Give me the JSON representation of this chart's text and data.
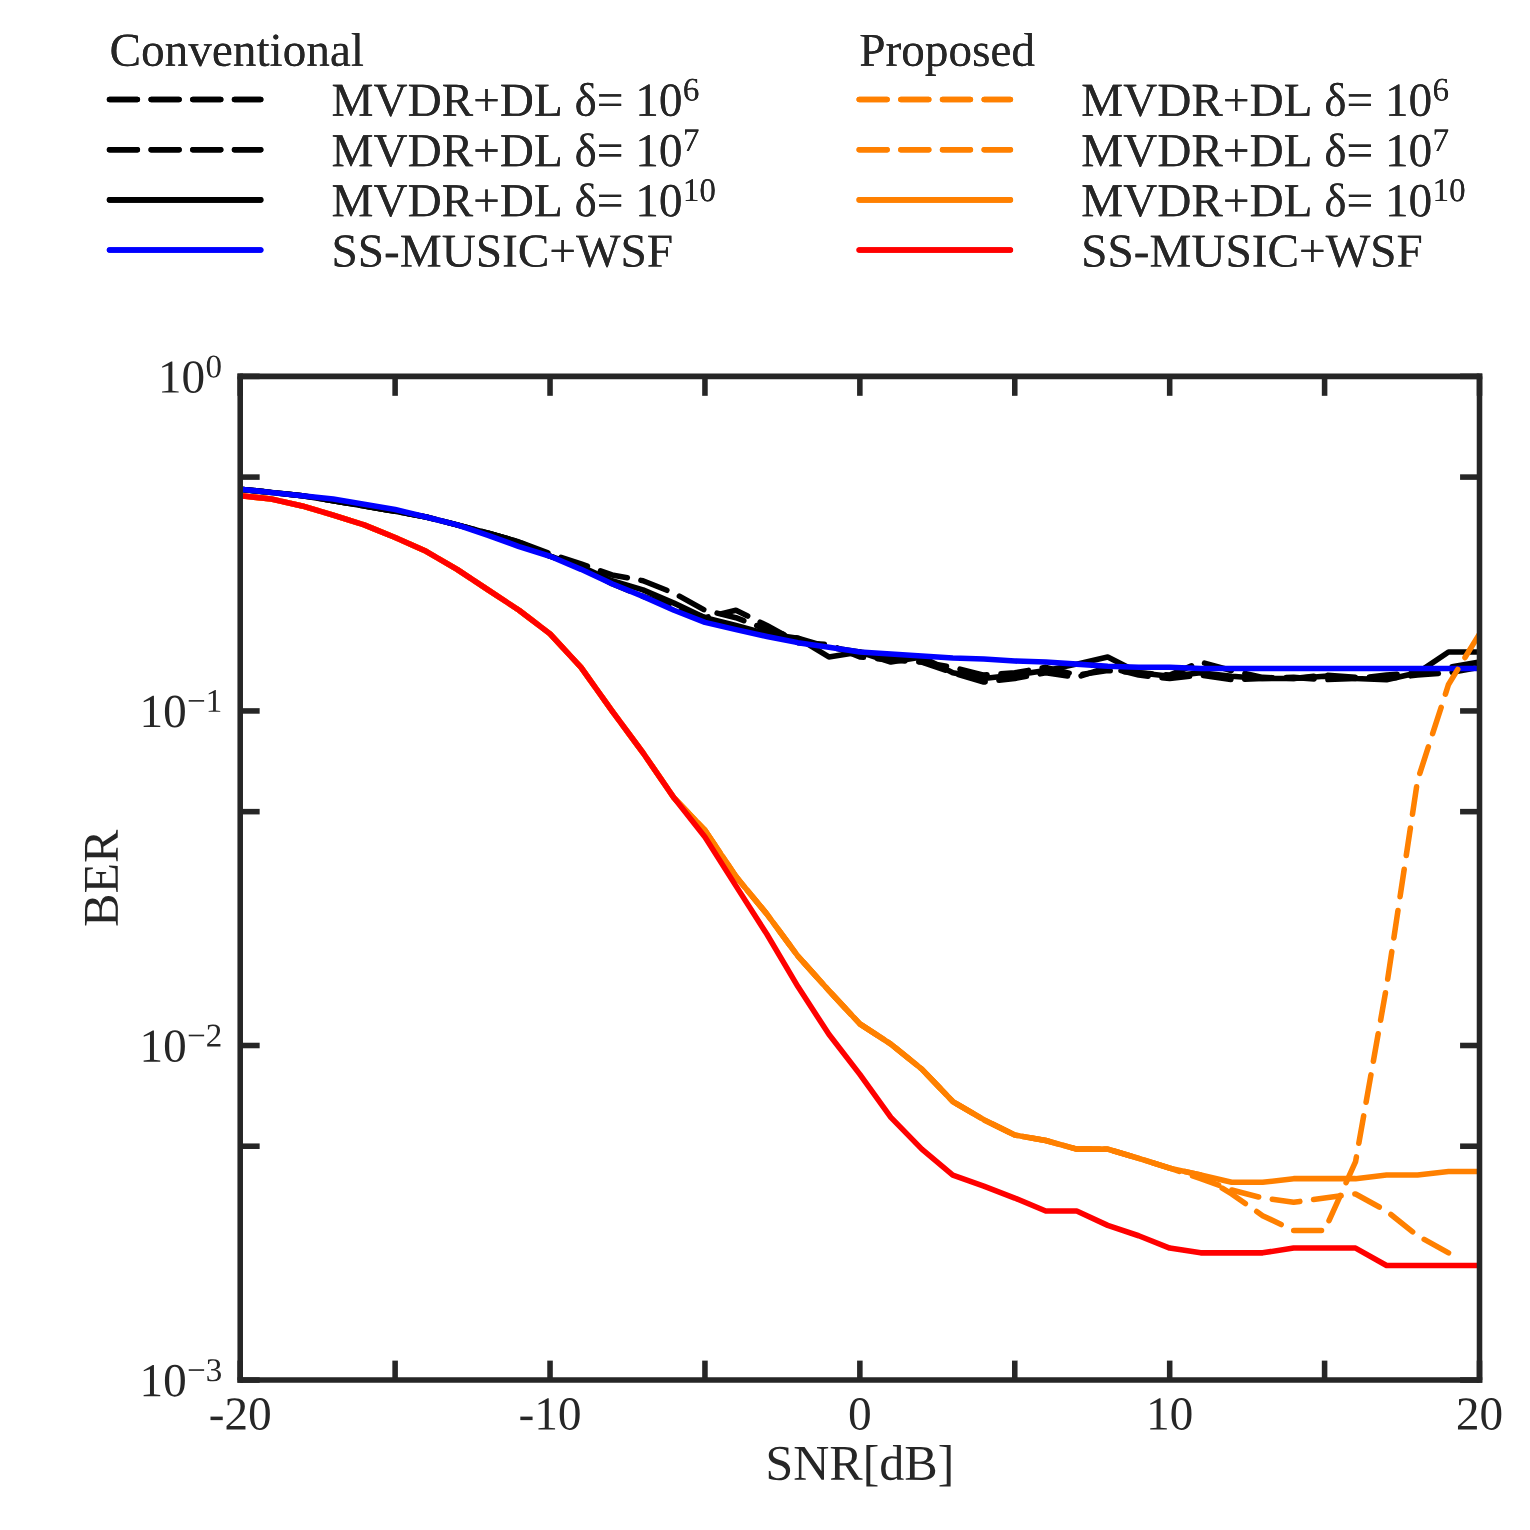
{
  "chart_data": {
    "type": "line",
    "xlabel": "SNR[dB]",
    "ylabel": "BER",
    "log": "y",
    "legend": "top",
    "legend_title": [
      "Conventional",
      "Proposed"
    ],
    "grid": false,
    "marker": "none",
    "xlim": [
      -20,
      20
    ],
    "xticks": [
      -20,
      {
        "value": -15,
        "label": null
      },
      -10,
      {
        "value": -5,
        "label": null
      },
      0,
      {
        "value": 5,
        "label": null
      },
      10,
      {
        "value": 15,
        "label": null
      },
      20
    ],
    "ylim": [
      0.001,
      1
    ],
    "yticks": [
      {
        "value": 0.001,
        "label": "10$^{−3}$"
      },
      {
        "value": 0.005,
        "label": null
      },
      {
        "value": 0.01,
        "label": "10$^{−2}$"
      },
      {
        "value": 0.05,
        "label": null
      },
      {
        "value": 0.1,
        "label": "10$^{−1}$"
      },
      {
        "value": 0.5,
        "label": null
      },
      {
        "value": 1,
        "label": "10$^{0}$"
      }
    ],
    "x": [
      -20,
      -19,
      -18,
      -17,
      -16,
      -15,
      -14,
      -13,
      -12,
      -11,
      -10,
      -9,
      -8,
      -7,
      -6,
      -5,
      -4,
      -3,
      -2,
      -1,
      0,
      1,
      2,
      3,
      4,
      5,
      6,
      7,
      8,
      9,
      10,
      11,
      12,
      13,
      14,
      15,
      16,
      17,
      18,
      19,
      20
    ],
    "series": [
      {
        "name": "MVDR+DL δ= 10$^{6}$",
        "color": "#000000",
        "line_style": "dashed",
        "values": [
          0.46,
          0.45,
          0.44,
          0.425,
          0.41,
          0.395,
          0.38,
          0.36,
          0.34,
          0.32,
          0.295,
          0.275,
          0.255,
          0.245,
          0.225,
          0.2,
          0.19,
          0.175,
          0.165,
          0.155,
          0.15,
          0.145,
          0.14,
          0.135,
          0.128,
          0.13,
          0.135,
          0.128,
          0.132,
          0.13,
          0.128,
          0.14,
          0.132,
          0.126,
          0.125,
          0.128,
          0.126,
          0.125,
          0.128,
          0.13,
          0.135
        ]
      },
      {
        "name": "MVDR+DL δ= 10$^{7}$",
        "color": "#000000",
        "line_style": "dashed",
        "values": [
          0.46,
          0.45,
          0.44,
          0.425,
          0.41,
          0.395,
          0.38,
          0.36,
          0.34,
          0.32,
          0.29,
          0.27,
          0.24,
          0.22,
          0.205,
          0.19,
          0.2,
          0.18,
          0.16,
          0.158,
          0.145,
          0.142,
          0.14,
          0.13,
          0.122,
          0.125,
          0.13,
          0.126,
          0.135,
          0.128,
          0.125,
          0.128,
          0.124,
          0.125,
          0.126,
          0.124,
          0.125,
          0.128,
          0.13,
          0.135,
          0.14
        ]
      },
      {
        "name": "MVDR+DL δ= 10$^{10}$",
        "color": "#000000",
        "line_style": "solid",
        "values": [
          0.46,
          0.45,
          0.44,
          0.425,
          0.41,
          0.395,
          0.38,
          0.36,
          0.34,
          0.32,
          0.29,
          0.27,
          0.245,
          0.23,
          0.21,
          0.19,
          0.18,
          0.17,
          0.165,
          0.145,
          0.15,
          0.14,
          0.145,
          0.13,
          0.125,
          0.128,
          0.132,
          0.138,
          0.145,
          0.13,
          0.127,
          0.13,
          0.127,
          0.125,
          0.125,
          0.127,
          0.125,
          0.124,
          0.13,
          0.15,
          0.15
        ]
      },
      {
        "name": "SS-MUSIC+WSF",
        "color": "#0000ff",
        "line_style": "solid",
        "values": [
          0.46,
          0.45,
          0.44,
          0.43,
          0.415,
          0.4,
          0.38,
          0.36,
          0.335,
          0.31,
          0.29,
          0.265,
          0.24,
          0.22,
          0.2,
          0.184,
          0.175,
          0.167,
          0.16,
          0.155,
          0.15,
          0.148,
          0.146,
          0.144,
          0.143,
          0.141,
          0.14,
          0.138,
          0.136,
          0.135,
          0.135,
          0.134,
          0.134,
          0.134,
          0.134,
          0.134,
          0.134,
          0.134,
          0.134,
          0.134,
          0.134
        ]
      },
      {
        "name": "MVDR+DL δ= 10$^{6}$",
        "color": "#ff8000",
        "line_style": "dashed",
        "values": [
          0.44,
          0.43,
          0.41,
          0.385,
          0.36,
          0.33,
          0.3,
          0.265,
          0.23,
          0.2,
          0.17,
          0.135,
          0.1,
          0.075,
          0.055,
          0.044,
          0.032,
          0.0247,
          0.0185,
          0.0146,
          0.0116,
          0.0101,
          0.0085,
          0.0068,
          0.006,
          0.0054,
          0.0052,
          0.0049,
          0.0049,
          0.0046,
          0.0043,
          0.0041,
          0.0036,
          0.0031,
          0.0028,
          0.0028,
          0.0045,
          0.015,
          0.062,
          0.12,
          0.17
        ]
      },
      {
        "name": "MVDR+DL δ= 10$^{7}$",
        "color": "#ff8000",
        "line_style": "dashed",
        "values": [
          0.44,
          0.43,
          0.41,
          0.385,
          0.36,
          0.33,
          0.3,
          0.265,
          0.23,
          0.2,
          0.17,
          0.135,
          0.1,
          0.075,
          0.055,
          0.044,
          0.032,
          0.0247,
          0.0185,
          0.0146,
          0.0116,
          0.0101,
          0.0085,
          0.0068,
          0.006,
          0.0054,
          0.0052,
          0.0049,
          0.0049,
          0.0046,
          0.0043,
          0.004,
          0.0037,
          0.0035,
          0.0034,
          0.0035,
          0.0036,
          0.0032,
          0.0027,
          0.0024,
          null
        ]
      },
      {
        "name": "MVDR+DL δ= 10$^{10}$",
        "color": "#ff8000",
        "line_style": "solid",
        "values": [
          0.44,
          0.43,
          0.41,
          0.385,
          0.36,
          0.33,
          0.3,
          0.265,
          0.23,
          0.2,
          0.17,
          0.135,
          0.1,
          0.075,
          0.055,
          0.044,
          0.032,
          0.0247,
          0.0185,
          0.0146,
          0.0116,
          0.0101,
          0.0085,
          0.0068,
          0.006,
          0.0054,
          0.0052,
          0.0049,
          0.0049,
          0.0046,
          0.0043,
          0.0041,
          0.0039,
          0.0039,
          0.004,
          0.004,
          0.004,
          0.0041,
          0.0041,
          0.0042,
          0.0042
        ]
      },
      {
        "name": "SS-MUSIC+WSF",
        "color": "#ff0000",
        "line_style": "solid",
        "values": [
          0.44,
          0.43,
          0.41,
          0.385,
          0.36,
          0.33,
          0.3,
          0.265,
          0.23,
          0.2,
          0.17,
          0.135,
          0.1,
          0.075,
          0.055,
          0.042,
          0.03,
          0.0215,
          0.015,
          0.0108,
          0.0082,
          0.0061,
          0.0049,
          0.0041,
          0.0038,
          0.0035,
          0.0032,
          0.0032,
          0.0029,
          0.0027,
          0.00248,
          0.0024,
          0.0024,
          0.0024,
          0.00248,
          0.00248,
          0.00248,
          0.0022,
          0.0022,
          0.0022,
          0.0022
        ]
      }
    ]
  }
}
